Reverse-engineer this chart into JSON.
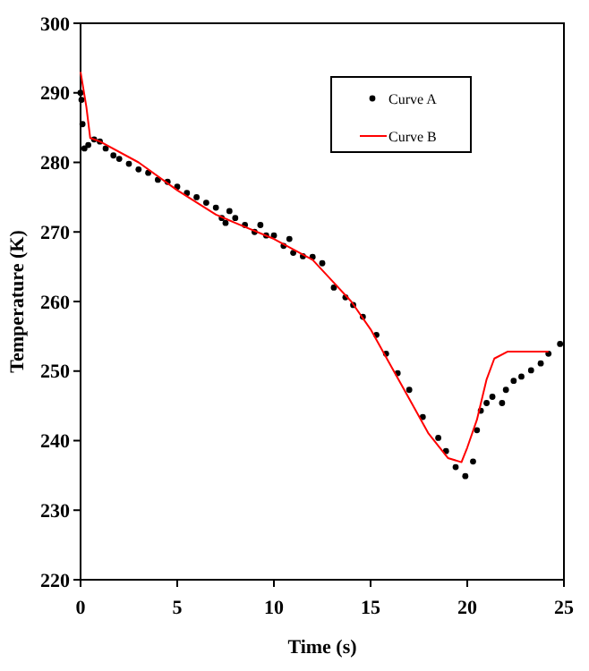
{
  "chart_data": {
    "type": "line",
    "xlabel": "Time  (s)",
    "ylabel": "Temperature  (K)",
    "xlim": [
      0,
      25
    ],
    "ylim": [
      220,
      300
    ],
    "xticks": [
      0,
      5,
      10,
      15,
      20,
      25
    ],
    "yticks": [
      220,
      230,
      240,
      250,
      260,
      270,
      280,
      290,
      300
    ],
    "grid": false,
    "legend": "top right",
    "series": [
      {
        "name": "Curve A",
        "type": "scatter",
        "marker": "circle",
        "color": "#000000",
        "x": [
          0,
          0.05,
          0.1,
          0.2,
          0.4,
          0.7,
          1,
          1.3,
          1.7,
          2,
          2.5,
          3,
          3.5,
          4,
          4.5,
          5,
          5.5,
          6,
          6.5,
          7,
          7.3,
          7.5,
          7.7,
          8,
          8.5,
          9,
          9.3,
          9.6,
          10,
          10.5,
          10.8,
          11,
          11.5,
          12,
          12.5,
          13.1,
          13.7,
          14.1,
          14.6,
          15.3,
          15.8,
          16.4,
          17,
          17.7,
          18.5,
          18.9,
          19.4,
          19.9,
          20.3,
          20.5,
          20.7,
          21,
          21.3,
          21.8,
          22,
          22.4,
          22.8,
          23.3,
          23.8,
          24.2,
          24.8
        ],
        "values": [
          290,
          289,
          285.5,
          282,
          282.5,
          283.3,
          283,
          282,
          281,
          280.5,
          279.8,
          279,
          278.5,
          277.5,
          277.2,
          276.5,
          275.6,
          275,
          274.2,
          273.5,
          272,
          271.3,
          273,
          272,
          271,
          270,
          271,
          269.5,
          269.5,
          268,
          269,
          267,
          266.5,
          266.4,
          265.5,
          262,
          260.6,
          259.5,
          257.8,
          255.2,
          252.5,
          249.7,
          247.3,
          243.4,
          240.4,
          238.5,
          236.2,
          234.9,
          237,
          241.5,
          244.3,
          245.4,
          246.3,
          245.4,
          247.3,
          248.6,
          249.2,
          250.1,
          251.1,
          252.5,
          253.9
        ]
      },
      {
        "name": "Curve B",
        "marker": "none",
        "line_style": "solid",
        "color": "#ff0000",
        "x": [
          0,
          0.3,
          0.5,
          1,
          3,
          5,
          7,
          8,
          10,
          12,
          13,
          14,
          15,
          16,
          17,
          18,
          19,
          19.7,
          20,
          20.5,
          21,
          21.4,
          22.1,
          24.2
        ],
        "values": [
          293,
          288,
          283.5,
          283,
          280,
          276,
          272.5,
          271.3,
          269,
          266,
          263,
          260,
          256,
          251,
          246,
          241,
          237.5,
          236.9,
          239,
          243,
          248.8,
          251.8,
          252.8,
          252.8
        ]
      }
    ]
  }
}
